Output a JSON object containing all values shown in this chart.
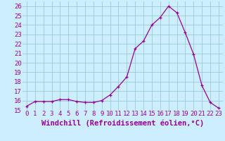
{
  "x": [
    0,
    1,
    2,
    3,
    4,
    5,
    6,
    7,
    8,
    9,
    10,
    11,
    12,
    13,
    14,
    15,
    16,
    17,
    18,
    19,
    20,
    21,
    22,
    23
  ],
  "y": [
    15.4,
    15.9,
    15.9,
    15.9,
    16.1,
    16.1,
    15.9,
    15.8,
    15.8,
    16.0,
    16.6,
    17.5,
    18.5,
    21.5,
    22.3,
    24.0,
    24.8,
    26.0,
    25.3,
    23.2,
    20.9,
    17.6,
    15.8,
    15.2
  ],
  "xlim": [
    -0.5,
    23.5
  ],
  "ylim": [
    15,
    26.5
  ],
  "yticks": [
    15,
    16,
    17,
    18,
    19,
    20,
    21,
    22,
    23,
    24,
    25,
    26
  ],
  "xticks": [
    0,
    1,
    2,
    3,
    4,
    5,
    6,
    7,
    8,
    9,
    10,
    11,
    12,
    13,
    14,
    15,
    16,
    17,
    18,
    19,
    20,
    21,
    22,
    23
  ],
  "xlabel": "Windchill (Refroidissement éolien,°C)",
  "line_color": "#990099",
  "marker_color": "#990099",
  "bg_color": "#cceeff",
  "grid_color": "#99cccc",
  "tick_fontsize": 6.5,
  "xlabel_fontsize": 7.5
}
